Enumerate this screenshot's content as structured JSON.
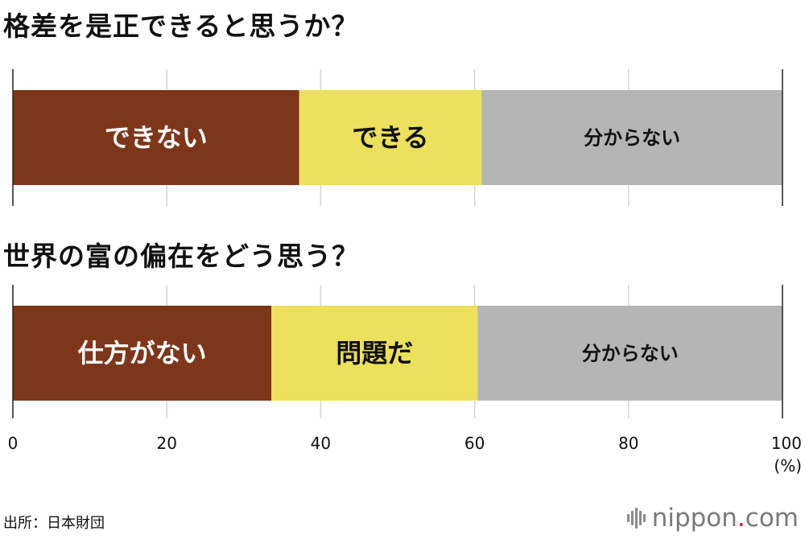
{
  "chart_data": [
    {
      "type": "bar",
      "orientation": "horizontal-stacked-100",
      "title": "格差を是正できると思うか？",
      "segments": [
        {
          "name": "できない",
          "value": 37.2,
          "color": "#7e361a",
          "label_color": "#ffffff"
        },
        {
          "name": "できる",
          "value": 23.7,
          "color": "#ece05c",
          "label_color": "#111111"
        },
        {
          "name": "分からない",
          "value": 39.1,
          "color": "#b5b5b5",
          "label_color": "#111111"
        }
      ]
    },
    {
      "type": "bar",
      "orientation": "horizontal-stacked-100",
      "title": "世界の富の偏在をどう思う？",
      "segments": [
        {
          "name": "仕方がない",
          "value": 33.6,
          "color": "#7e361a",
          "label_color": "#ffffff"
        },
        {
          "name": "問題だ",
          "value": 26.8,
          "color": "#ece05c",
          "label_color": "#111111"
        },
        {
          "name": "分からない",
          "value": 39.6,
          "color": "#b5b5b5",
          "label_color": "#111111"
        }
      ]
    }
  ],
  "axis": {
    "xlim": [
      0,
      100
    ],
    "ticks": [
      "0",
      "20",
      "40",
      "60",
      "80",
      "100"
    ],
    "unit": "(%)",
    "grid": true
  },
  "source": "出所：日本財団",
  "logo": {
    "name": "nippon",
    "dot": ".",
    "suffix": "com"
  }
}
